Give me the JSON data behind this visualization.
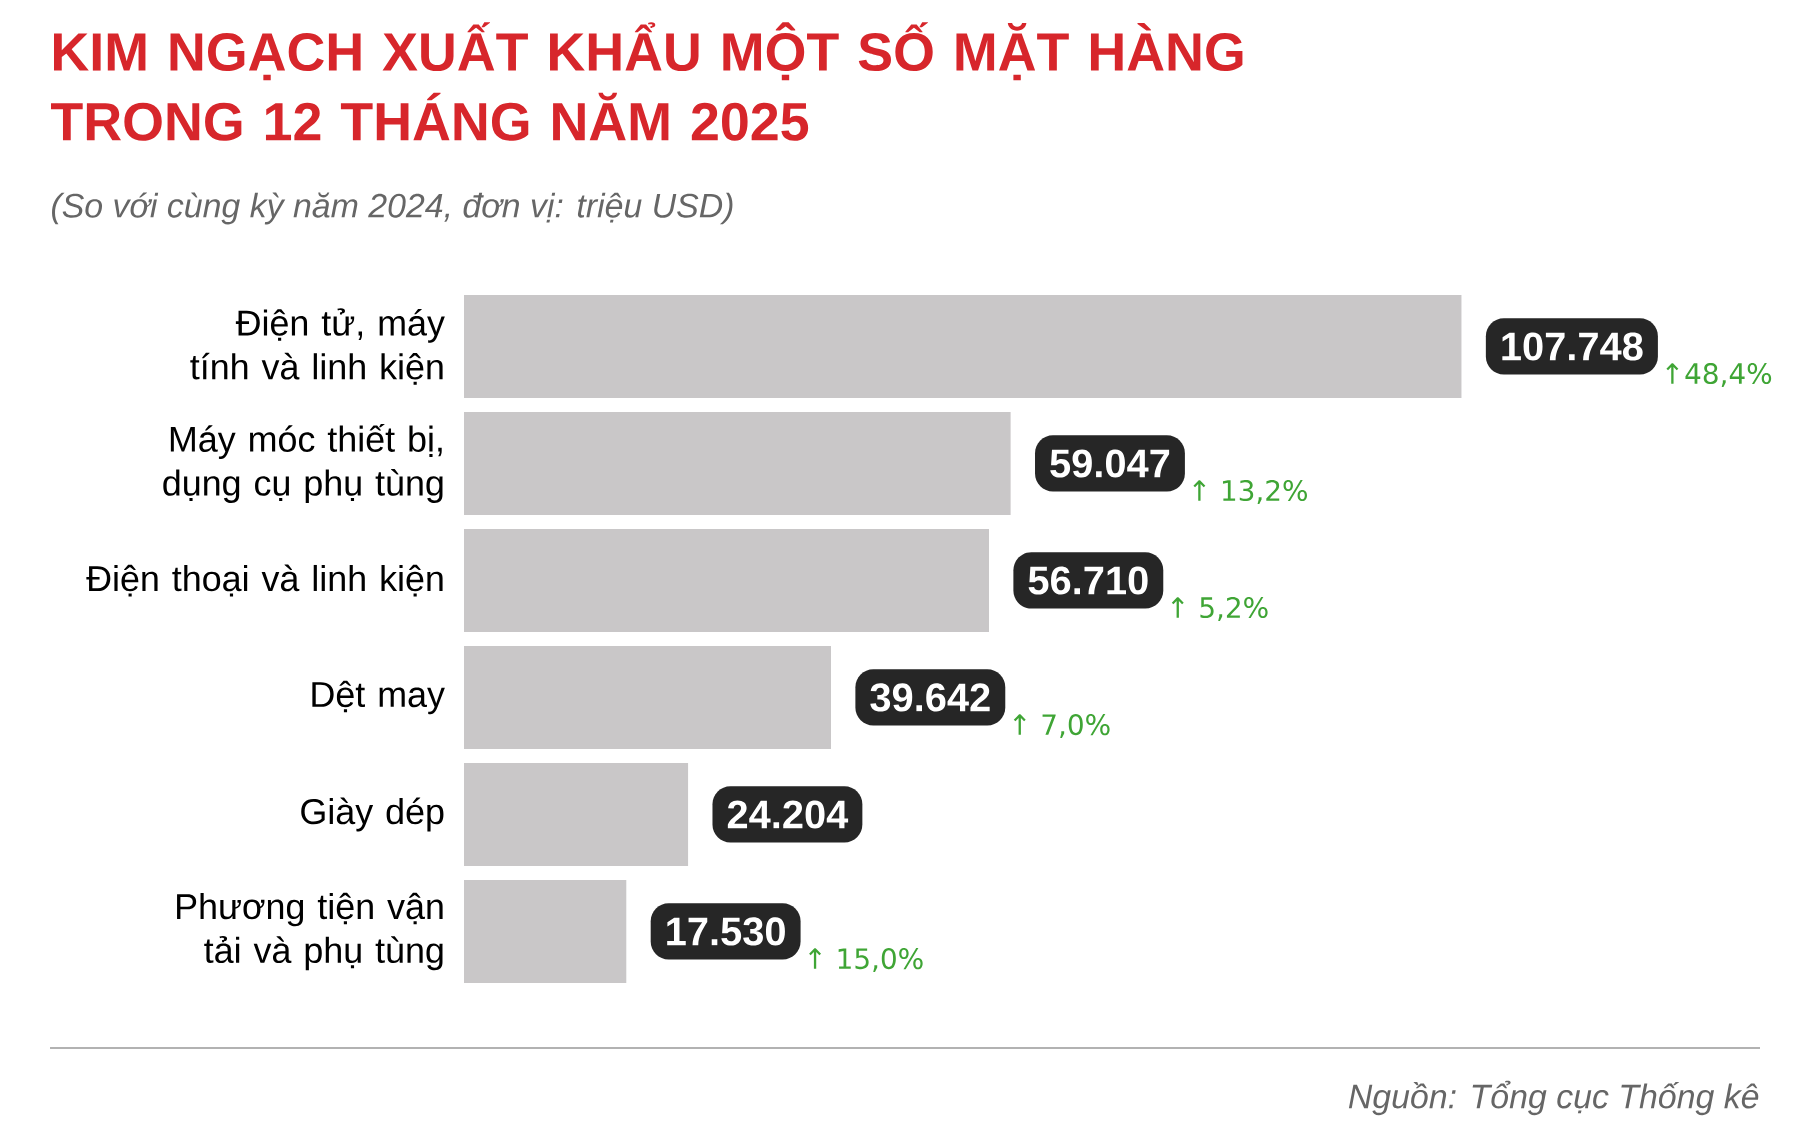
{
  "chart_data": {
    "type": "bar",
    "orientation": "horizontal",
    "title": "KIM NGẠCH XUẤT KHẨU MỘT SỐ MẶT HÀNG TRONG 12 THÁNG NĂM 2025",
    "subtitle": "(So với cùng kỳ năm 2024, đơn vị: triệu USD)",
    "categories": [
      "Điện tử, máy tính và linh kiện",
      "Máy móc thiết bị, dụng cụ phụ tùng",
      "Điện thoại và linh kiện",
      "Dệt may",
      "Giày dép",
      "Phương tiện vận tải và phụ tùng"
    ],
    "values": [
      107748,
      59047,
      56710,
      39642,
      24204,
      17530
    ],
    "value_labels": [
      "107.748",
      "59.047",
      "56.710",
      "39.642",
      "24.204",
      "17.530"
    ],
    "color": "#c9c7c8",
    "xlim": [
      0,
      140000
    ],
    "annotations": [
      "↑48,4%",
      "↑ 13,2%",
      "↑ 5,2%",
      "↑ 7,0%",
      "↑ 15,0%",
      "Nguồn: Tổng cục Thống kê"
    ]
  }
}
